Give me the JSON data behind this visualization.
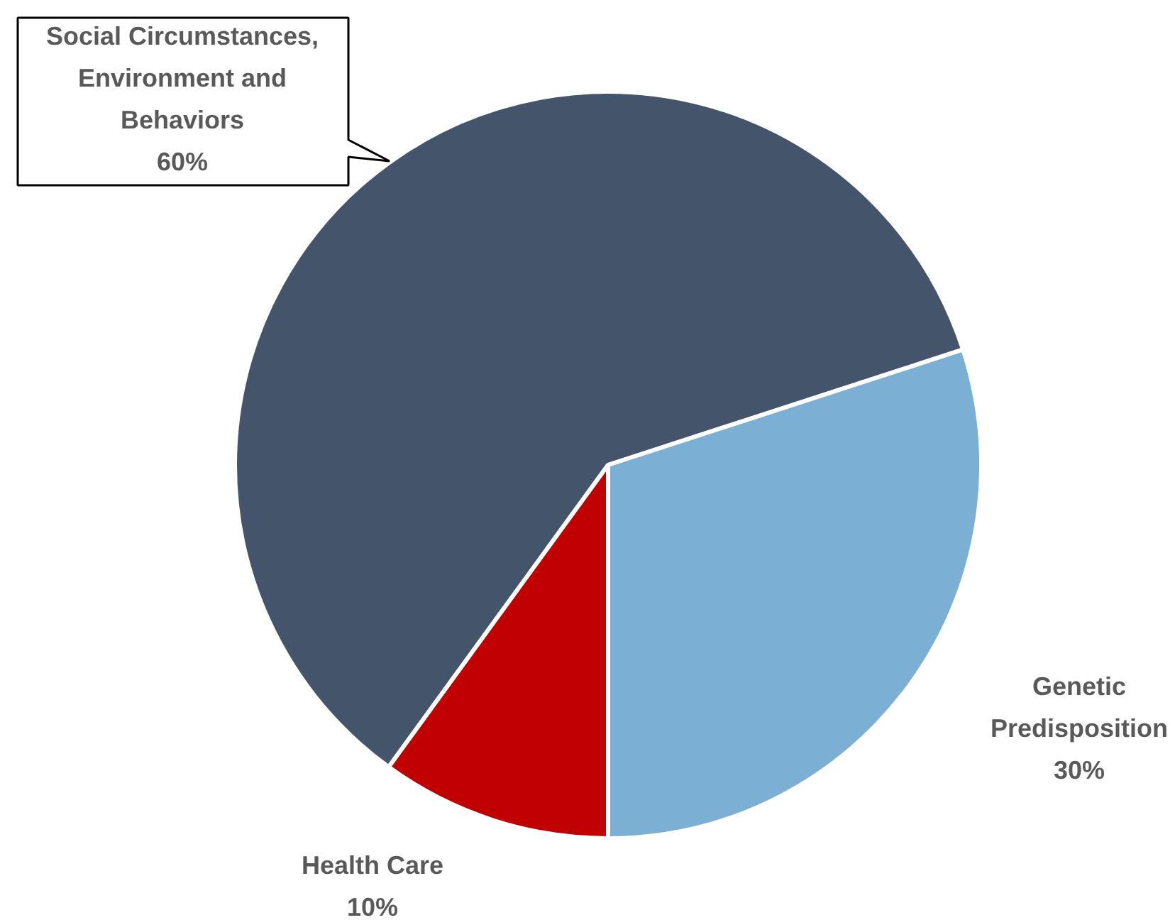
{
  "chart_data": {
    "type": "pie",
    "categories": [
      "Social Circumstances, Environment and Behaviors",
      "Genetic Predisposition",
      "Health Care"
    ],
    "values": [
      60,
      30,
      10
    ],
    "colors": [
      "#44546a",
      "#7bafd4",
      "#c00000"
    ],
    "value_labels": [
      "60%",
      "30%",
      "10%"
    ]
  }
}
